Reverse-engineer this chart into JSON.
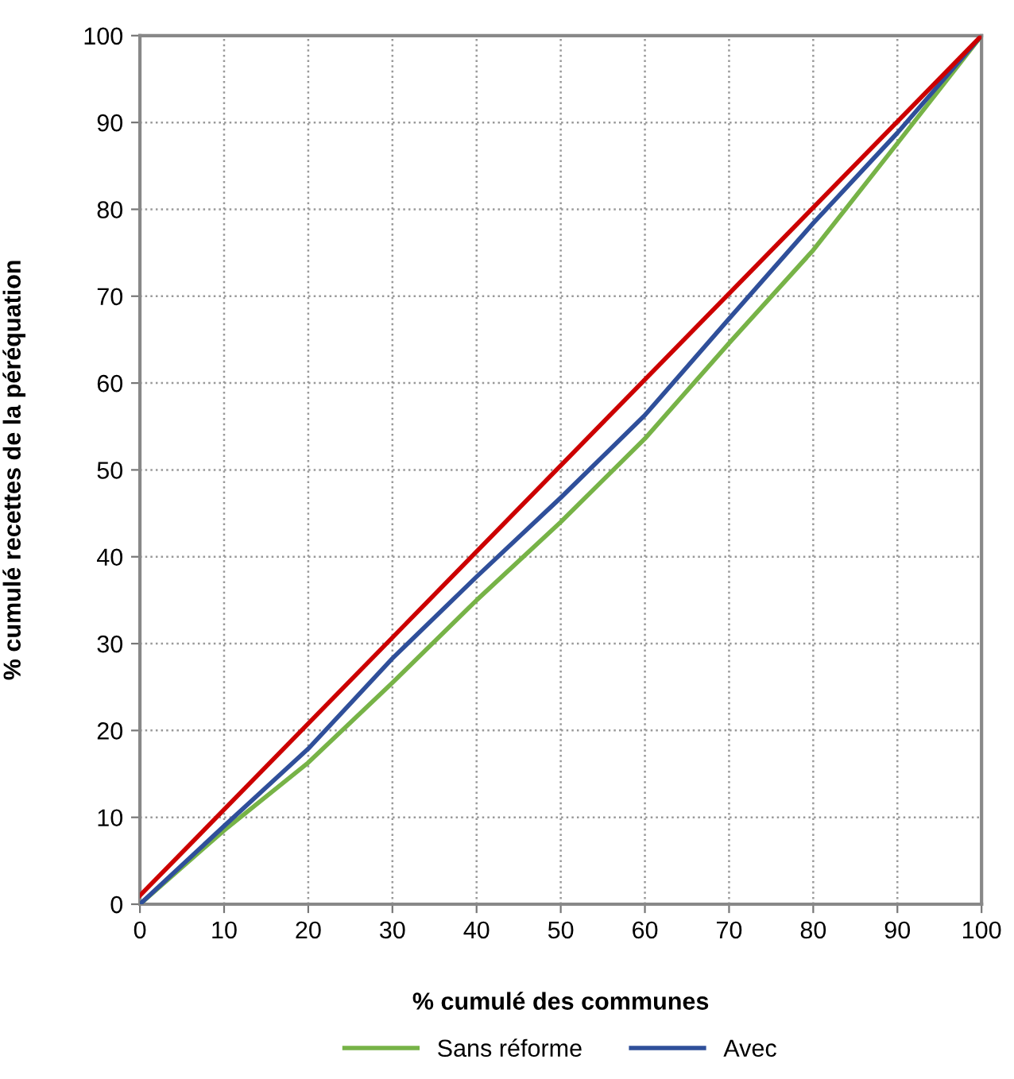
{
  "chart_data": {
    "type": "line",
    "xlabel": "% cumulé des communes",
    "ylabel": "% cumulé recettes de la péréquation",
    "xlim": [
      0,
      100
    ],
    "ylim": [
      0,
      100
    ],
    "xticks": [
      0,
      10,
      20,
      30,
      40,
      50,
      60,
      70,
      80,
      90,
      100
    ],
    "yticks": [
      0,
      10,
      20,
      30,
      40,
      50,
      60,
      70,
      80,
      90,
      100
    ],
    "grid": true,
    "legend": "bottom",
    "marker": "none",
    "line_style": "solid",
    "series": [
      {
        "name": "Sans réforme",
        "color": "#77b347",
        "x": [
          0,
          10,
          20,
          30,
          40,
          50,
          60,
          70,
          80,
          90,
          100
        ],
        "values": [
          0,
          8.5,
          16.3,
          25.5,
          35,
          44,
          53.6,
          64.6,
          75.3,
          87.6,
          100
        ]
      },
      {
        "name": "Avec",
        "color": "#2f4f9a",
        "x": [
          0,
          10,
          20,
          30,
          40,
          50,
          60,
          70,
          80,
          90,
          100
        ],
        "values": [
          0,
          9,
          17.9,
          28.3,
          37.7,
          46.8,
          56.3,
          67.4,
          78.4,
          88.8,
          100
        ]
      },
      {
        "color": "#cc0000",
        "x": [
          0,
          100
        ],
        "values": [
          1,
          100
        ]
      }
    ]
  }
}
